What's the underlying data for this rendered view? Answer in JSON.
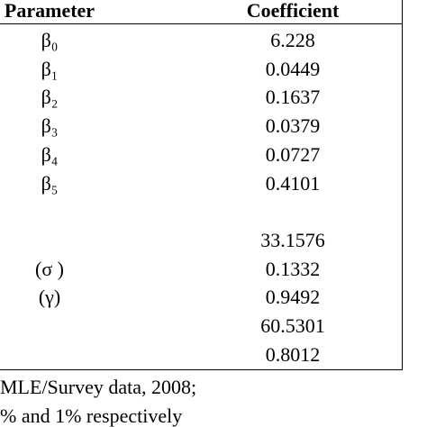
{
  "table": {
    "header": [
      "Parameter",
      "Coefficient"
    ],
    "rows": [
      [
        "β₀",
        "6.228"
      ],
      [
        "β₁",
        "0.0449"
      ],
      [
        "β₂",
        "0.1637"
      ],
      [
        "β₃",
        "0.0379"
      ],
      [
        "β₄",
        "0.0727"
      ],
      [
        "β₅",
        "0.4101"
      ],
      [
        null,
        null
      ],
      [
        null,
        "33.1576"
      ],
      [
        "(σ )",
        "0.1332"
      ],
      [
        "(γ)",
        "0.9492"
      ],
      [
        null,
        "60.5301"
      ],
      [
        null,
        "0.8012"
      ]
    ]
  },
  "footer": [
    "MLE/Survey data, 2008;",
    "% and 1% respectively"
  ]
}
